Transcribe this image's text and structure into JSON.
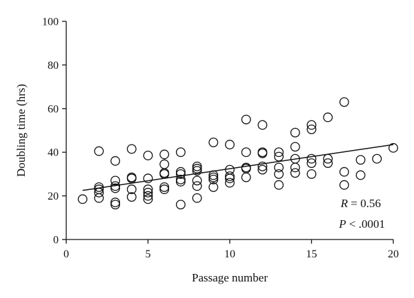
{
  "chart_data": {
    "type": "scatter",
    "xlabel": "Passage number",
    "ylabel": "Doubling time (hrs)",
    "xlim": [
      0,
      20
    ],
    "ylim": [
      0,
      100
    ],
    "xticks": [
      0,
      5,
      10,
      15,
      20
    ],
    "yticks": [
      0,
      20,
      40,
      60,
      80,
      100
    ],
    "grid": false,
    "series": [
      {
        "points": [
          [
            1,
            18.5
          ],
          [
            2,
            40.5
          ],
          [
            2,
            24
          ],
          [
            2,
            23
          ],
          [
            2,
            21.5
          ],
          [
            2,
            19
          ],
          [
            3,
            36
          ],
          [
            3,
            27
          ],
          [
            3,
            24.5
          ],
          [
            3,
            23.5
          ],
          [
            3,
            17
          ],
          [
            3,
            16
          ],
          [
            4,
            41.5
          ],
          [
            4,
            28.5
          ],
          [
            4,
            28
          ],
          [
            4,
            23
          ],
          [
            4,
            19.5
          ],
          [
            5,
            38.5
          ],
          [
            5,
            28
          ],
          [
            5,
            23
          ],
          [
            5,
            21.5
          ],
          [
            5,
            20
          ],
          [
            5,
            18.5
          ],
          [
            6,
            39
          ],
          [
            6,
            34.5
          ],
          [
            6,
            30.5
          ],
          [
            6,
            30
          ],
          [
            6,
            24
          ],
          [
            6,
            23
          ],
          [
            7,
            40
          ],
          [
            7,
            31
          ],
          [
            7,
            30
          ],
          [
            7,
            27.5
          ],
          [
            7,
            26.5
          ],
          [
            7,
            16
          ],
          [
            8,
            33.5
          ],
          [
            8,
            32.5
          ],
          [
            8,
            31.5
          ],
          [
            8,
            27
          ],
          [
            8,
            24.5
          ],
          [
            8,
            19
          ],
          [
            9,
            44.5
          ],
          [
            9,
            29.5
          ],
          [
            9,
            28.5
          ],
          [
            9,
            27.5
          ],
          [
            9,
            24
          ],
          [
            10,
            43.5
          ],
          [
            10,
            32
          ],
          [
            10,
            29
          ],
          [
            10,
            28
          ],
          [
            10,
            26
          ],
          [
            11,
            55
          ],
          [
            11,
            40
          ],
          [
            11,
            33
          ],
          [
            11,
            32.5
          ],
          [
            11,
            28.5
          ],
          [
            12,
            52.5
          ],
          [
            12,
            40
          ],
          [
            12,
            39.5
          ],
          [
            12,
            33.5
          ],
          [
            12,
            32
          ],
          [
            13,
            40
          ],
          [
            13,
            38
          ],
          [
            13,
            33
          ],
          [
            13,
            30
          ],
          [
            13,
            25
          ],
          [
            14,
            49
          ],
          [
            14,
            42.5
          ],
          [
            14,
            37
          ],
          [
            14,
            33
          ],
          [
            14,
            30.5
          ],
          [
            15,
            52.5
          ],
          [
            15,
            50.5
          ],
          [
            15,
            37
          ],
          [
            15,
            35
          ],
          [
            15,
            30
          ],
          [
            16,
            56
          ],
          [
            16,
            37
          ],
          [
            16,
            35
          ],
          [
            17,
            63
          ],
          [
            17,
            31
          ],
          [
            17,
            25
          ],
          [
            18,
            36.5
          ],
          [
            18,
            29.5
          ],
          [
            19,
            37
          ],
          [
            20,
            42
          ]
        ]
      }
    ],
    "fit_line": {
      "x": [
        1,
        20
      ],
      "y": [
        22.5,
        43.5
      ]
    },
    "annotations": {
      "r_symbol": "R",
      "r_value": " = 0.56",
      "p_symbol": "P",
      "p_value": " < .0001"
    }
  }
}
